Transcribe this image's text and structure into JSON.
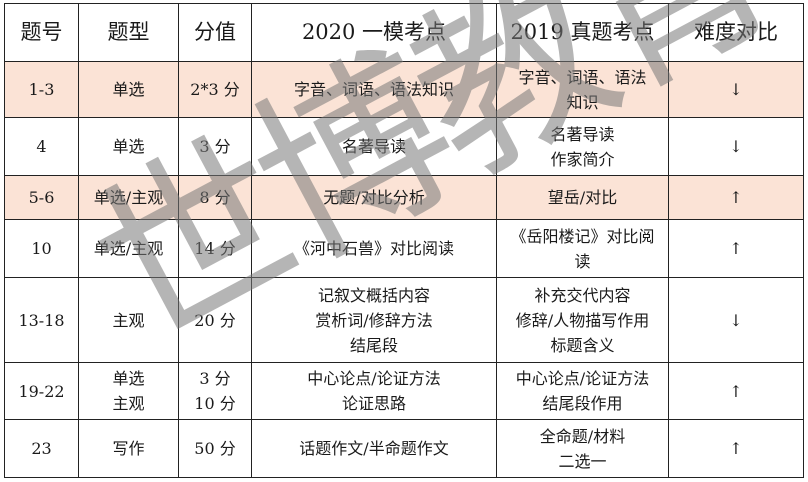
{
  "headers": [
    "题号",
    "题型",
    "分值",
    "2020 一模考点",
    "2019 真题考点",
    "难度对比"
  ],
  "rows": [
    {
      "highlight": true,
      "cells": [
        [
          "1-3"
        ],
        [
          "单选"
        ],
        [
          "2*3 分"
        ],
        [
          "字音、词语、语法知识"
        ],
        [
          "字音、词语、语法",
          "知识"
        ],
        [
          "↓"
        ]
      ]
    },
    {
      "highlight": false,
      "cells": [
        [
          "4"
        ],
        [
          "单选"
        ],
        [
          "3 分"
        ],
        [
          "名著导读"
        ],
        [
          "名著导读",
          "作家简介"
        ],
        [
          "↓"
        ]
      ]
    },
    {
      "highlight": true,
      "cells": [
        [
          "5-6"
        ],
        [
          "单选/主观"
        ],
        [
          "8 分"
        ],
        [
          "无题/对比分析"
        ],
        [
          "望岳/对比"
        ],
        [
          "↑"
        ]
      ]
    },
    {
      "highlight": false,
      "cells": [
        [
          "10"
        ],
        [
          "单选/主观"
        ],
        [
          "14 分"
        ],
        [
          "《河中石兽》对比阅读"
        ],
        [
          "《岳阳楼记》对比阅",
          "读"
        ],
        [
          "↑"
        ]
      ]
    },
    {
      "highlight": false,
      "cells": [
        [
          "13-18"
        ],
        [
          "主观"
        ],
        [
          "20 分"
        ],
        [
          "记叙文概括内容",
          "赏析词/修辞方法",
          "结尾段"
        ],
        [
          "补充交代内容",
          "修辞/人物描写作用",
          "标题含义"
        ],
        [
          "↓"
        ]
      ]
    },
    {
      "highlight": false,
      "cells": [
        [
          "19-22"
        ],
        [
          "单选",
          "主观"
        ],
        [
          "3 分",
          "10 分"
        ],
        [
          "中心论点/论证方法",
          "论证思路"
        ],
        [
          "中心论点/论证方法",
          "结尾段作用"
        ],
        [
          "↑"
        ]
      ]
    },
    {
      "highlight": false,
      "cells": [
        [
          "23"
        ],
        [
          "写作"
        ],
        [
          "50 分"
        ],
        [
          "话题作文/半命题作文"
        ],
        [
          "全命题/材料",
          "二选一"
        ],
        [
          "↑"
        ]
      ]
    }
  ],
  "watermark": "世博教育",
  "colors": {
    "highlight_row": "#fbe3d6",
    "border": "#222222",
    "watermark": "#888888"
  }
}
